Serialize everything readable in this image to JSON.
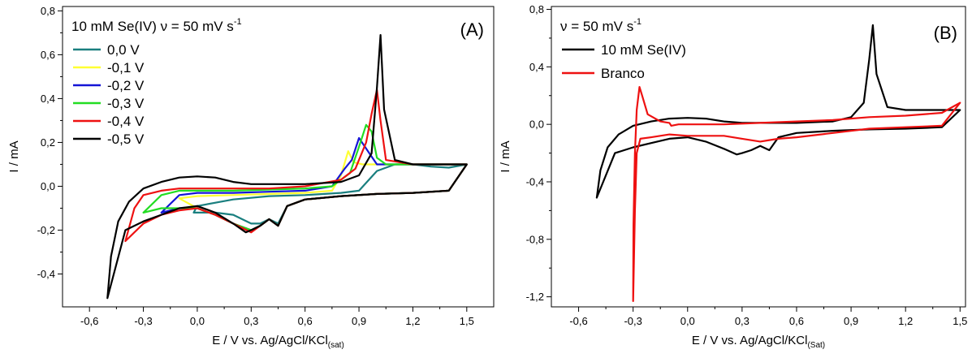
{
  "chart_data": [
    {
      "type": "line",
      "panel_label": "(A)",
      "legend_title": "10 mM Se(IV)  ν = 50 mV s",
      "legend_title_sup": "-1",
      "xlabel": "E / V vs. Ag/AgCl/KCl",
      "xlabel_sub": "(sat)",
      "ylabel": "I / mA",
      "xlim": [
        -0.75,
        1.65
      ],
      "ylim": [
        -0.55,
        0.82
      ],
      "xticks": [
        "-0,6",
        "-0,3",
        "0,0",
        "0,3",
        "0,6",
        "0,9",
        "1,2",
        "1,5"
      ],
      "xtick_values": [
        -0.6,
        -0.3,
        0.0,
        0.3,
        0.6,
        0.9,
        1.2,
        1.5
      ],
      "yticks": [
        "-0,4",
        "-0,2",
        "0,0",
        "0,2",
        "0,4",
        "0,6",
        "0,8"
      ],
      "ytick_values": [
        -0.4,
        -0.2,
        0.0,
        0.2,
        0.4,
        0.6,
        0.8
      ],
      "series": [
        {
          "name": "0,0 V",
          "color": "#1a7f7f",
          "x": [
            0.0,
            0.2,
            0.4,
            0.6,
            0.8,
            0.9,
            1.0,
            1.1,
            1.2,
            1.3,
            1.4,
            1.5,
            1.4,
            1.2,
            1.0,
            0.8,
            0.6,
            0.5,
            0.45,
            0.4,
            0.35,
            0.3,
            0.2,
            0.1,
            0.0,
            -0.02,
            0.0
          ],
          "y": [
            -0.09,
            -0.06,
            -0.045,
            -0.04,
            -0.03,
            -0.02,
            0.07,
            0.1,
            0.1,
            0.09,
            0.085,
            0.1,
            -0.02,
            -0.03,
            -0.035,
            -0.045,
            -0.06,
            -0.09,
            -0.17,
            -0.15,
            -0.17,
            -0.17,
            -0.13,
            -0.12,
            -0.12,
            -0.12,
            -0.09
          ]
        },
        {
          "name": "-0,1 V",
          "color": "#ffff33",
          "x": [
            -0.1,
            0.0,
            0.2,
            0.4,
            0.6,
            0.75,
            0.8,
            0.84,
            0.87,
            0.92,
            1.0,
            1.2,
            1.5,
            1.4,
            1.2,
            1.0,
            0.8,
            0.6,
            0.5,
            0.45,
            0.4,
            0.35,
            0.3,
            0.2,
            0.1,
            0.0,
            -0.1
          ],
          "y": [
            -0.055,
            -0.045,
            -0.04,
            -0.035,
            -0.03,
            -0.02,
            0.05,
            0.16,
            0.11,
            0.1,
            0.1,
            0.1,
            0.1,
            -0.02,
            -0.03,
            -0.035,
            -0.045,
            -0.06,
            -0.09,
            -0.18,
            -0.15,
            -0.18,
            -0.2,
            -0.17,
            -0.13,
            -0.1,
            -0.055
          ]
        },
        {
          "name": "-0,2 V",
          "color": "#1515d6",
          "x": [
            -0.2,
            -0.1,
            0.0,
            0.2,
            0.4,
            0.6,
            0.75,
            0.82,
            0.86,
            0.9,
            0.95,
            1.0,
            1.2,
            1.5,
            1.4,
            1.2,
            1.0,
            0.8,
            0.6,
            0.5,
            0.45,
            0.4,
            0.35,
            0.3,
            0.2,
            0.1,
            0.0,
            -0.1,
            -0.2
          ],
          "y": [
            -0.12,
            -0.04,
            -0.03,
            -0.03,
            -0.025,
            -0.02,
            0.0,
            0.08,
            0.12,
            0.22,
            0.16,
            0.1,
            0.1,
            0.1,
            -0.02,
            -0.03,
            -0.035,
            -0.045,
            -0.06,
            -0.09,
            -0.18,
            -0.15,
            -0.18,
            -0.2,
            -0.17,
            -0.13,
            -0.1,
            -0.1,
            -0.12
          ]
        },
        {
          "name": "-0,3 V",
          "color": "#22dd22",
          "x": [
            -0.3,
            -0.2,
            -0.1,
            0.0,
            0.2,
            0.4,
            0.6,
            0.75,
            0.85,
            0.9,
            0.94,
            0.97,
            1.0,
            1.05,
            1.2,
            1.5,
            1.4,
            1.2,
            1.0,
            0.8,
            0.6,
            0.5,
            0.45,
            0.4,
            0.35,
            0.3,
            0.2,
            0.1,
            0.0,
            -0.1,
            -0.2,
            -0.3
          ],
          "y": [
            -0.12,
            -0.04,
            -0.02,
            -0.02,
            -0.02,
            -0.015,
            -0.01,
            0.0,
            0.06,
            0.18,
            0.28,
            0.25,
            0.13,
            0.1,
            0.1,
            0.1,
            -0.02,
            -0.03,
            -0.035,
            -0.045,
            -0.06,
            -0.09,
            -0.18,
            -0.15,
            -0.18,
            -0.2,
            -0.17,
            -0.13,
            -0.1,
            -0.1,
            -0.1,
            -0.12
          ]
        },
        {
          "name": "-0,4 V",
          "color": "#ee1111",
          "x": [
            -0.4,
            -0.35,
            -0.3,
            -0.2,
            -0.1,
            0.0,
            0.2,
            0.4,
            0.6,
            0.8,
            0.88,
            0.94,
            0.97,
            1.0,
            1.02,
            1.05,
            1.2,
            1.5,
            1.4,
            1.2,
            1.0,
            0.8,
            0.6,
            0.5,
            0.45,
            0.4,
            0.35,
            0.3,
            0.2,
            0.1,
            0.0,
            -0.1,
            -0.2,
            -0.3,
            -0.4
          ],
          "y": [
            -0.25,
            -0.1,
            -0.04,
            -0.02,
            -0.01,
            -0.01,
            -0.01,
            -0.01,
            0.0,
            0.03,
            0.08,
            0.2,
            0.33,
            0.44,
            0.3,
            0.12,
            0.1,
            0.1,
            -0.02,
            -0.03,
            -0.035,
            -0.045,
            -0.06,
            -0.09,
            -0.18,
            -0.15,
            -0.18,
            -0.21,
            -0.17,
            -0.13,
            -0.1,
            -0.11,
            -0.13,
            -0.17,
            -0.25
          ]
        },
        {
          "name": "-0,5 V",
          "color": "#000000",
          "x": [
            -0.5,
            -0.48,
            -0.44,
            -0.38,
            -0.3,
            -0.2,
            -0.1,
            0.0,
            0.1,
            0.2,
            0.3,
            0.4,
            0.6,
            0.8,
            0.9,
            0.97,
            1.0,
            1.02,
            1.04,
            1.1,
            1.2,
            1.3,
            1.5,
            1.4,
            1.2,
            1.0,
            0.8,
            0.6,
            0.5,
            0.45,
            0.4,
            0.35,
            0.3,
            0.27,
            0.2,
            0.1,
            0.0,
            -0.1,
            -0.2,
            -0.3,
            -0.4,
            -0.5
          ],
          "y": [
            -0.51,
            -0.32,
            -0.16,
            -0.07,
            -0.01,
            0.02,
            0.04,
            0.045,
            0.04,
            0.02,
            0.01,
            0.01,
            0.01,
            0.02,
            0.05,
            0.15,
            0.45,
            0.69,
            0.35,
            0.12,
            0.1,
            0.1,
            0.1,
            -0.02,
            -0.03,
            -0.035,
            -0.045,
            -0.06,
            -0.09,
            -0.18,
            -0.15,
            -0.18,
            -0.2,
            -0.21,
            -0.17,
            -0.12,
            -0.09,
            -0.1,
            -0.13,
            -0.16,
            -0.2,
            -0.51
          ]
        }
      ]
    },
    {
      "type": "line",
      "panel_label": "(B)",
      "legend_title": "ν = 50 mV s",
      "legend_title_sup": "-1",
      "xlabel": "E / V vs. Ag/AgCl/KCl",
      "xlabel_sub": "(Sat)",
      "ylabel": "I / mA",
      "xlim": [
        -0.75,
        1.53
      ],
      "ylim": [
        -1.27,
        0.82
      ],
      "xticks": [
        "-0,6",
        "-0,3",
        "0,0",
        "0,3",
        "0,6",
        "0,9",
        "1,2",
        "1,5"
      ],
      "xtick_values": [
        -0.6,
        -0.3,
        0.0,
        0.3,
        0.6,
        0.9,
        1.2,
        1.5
      ],
      "yticks": [
        "-1,2",
        "-0,8",
        "-0,4",
        "0,0",
        "0,4",
        "0,8"
      ],
      "ytick_values": [
        -1.2,
        -0.8,
        -0.4,
        0.0,
        0.4,
        0.8
      ],
      "series": [
        {
          "name": "10 mM Se(IV)",
          "color": "#000000",
          "x": [
            -0.5,
            -0.48,
            -0.44,
            -0.38,
            -0.3,
            -0.2,
            -0.1,
            0.0,
            0.1,
            0.2,
            0.3,
            0.4,
            0.6,
            0.8,
            0.9,
            0.97,
            1.0,
            1.02,
            1.04,
            1.1,
            1.2,
            1.3,
            1.5,
            1.4,
            1.2,
            1.0,
            0.8,
            0.6,
            0.5,
            0.45,
            0.4,
            0.35,
            0.3,
            0.27,
            0.2,
            0.1,
            0.0,
            -0.1,
            -0.2,
            -0.3,
            -0.4,
            -0.5
          ],
          "y": [
            -0.51,
            -0.32,
            -0.16,
            -0.07,
            -0.01,
            0.02,
            0.04,
            0.045,
            0.04,
            0.02,
            0.01,
            0.01,
            0.01,
            0.02,
            0.05,
            0.15,
            0.45,
            0.69,
            0.35,
            0.12,
            0.1,
            0.1,
            0.1,
            -0.02,
            -0.03,
            -0.035,
            -0.045,
            -0.06,
            -0.09,
            -0.18,
            -0.15,
            -0.18,
            -0.2,
            -0.21,
            -0.17,
            -0.12,
            -0.09,
            -0.1,
            -0.13,
            -0.16,
            -0.2,
            -0.51
          ]
        },
        {
          "name": "Branco",
          "color": "#ee1111",
          "x": [
            -0.3,
            -0.298,
            -0.29,
            -0.28,
            -0.265,
            -0.25,
            -0.22,
            -0.15,
            -0.1,
            -0.09,
            -0.05,
            0.0,
            0.2,
            0.4,
            0.6,
            0.8,
            1.0,
            1.2,
            1.4,
            1.5,
            1.4,
            1.2,
            1.0,
            0.8,
            0.6,
            0.5,
            0.45,
            0.4,
            0.3,
            0.2,
            0.1,
            0.0,
            -0.1,
            -0.2,
            -0.26,
            -0.28,
            -0.29,
            -0.3
          ],
          "y": [
            -1.23,
            -0.7,
            -0.2,
            0.1,
            0.26,
            0.2,
            0.07,
            0.02,
            0.01,
            -0.01,
            0.0,
            0.0,
            0.0,
            0.01,
            0.02,
            0.03,
            0.05,
            0.06,
            0.08,
            0.15,
            -0.01,
            -0.02,
            -0.03,
            -0.06,
            -0.09,
            -0.1,
            -0.11,
            -0.12,
            -0.1,
            -0.08,
            -0.08,
            -0.08,
            -0.07,
            -0.09,
            -0.1,
            -0.2,
            -0.6,
            -1.23
          ]
        }
      ]
    }
  ]
}
